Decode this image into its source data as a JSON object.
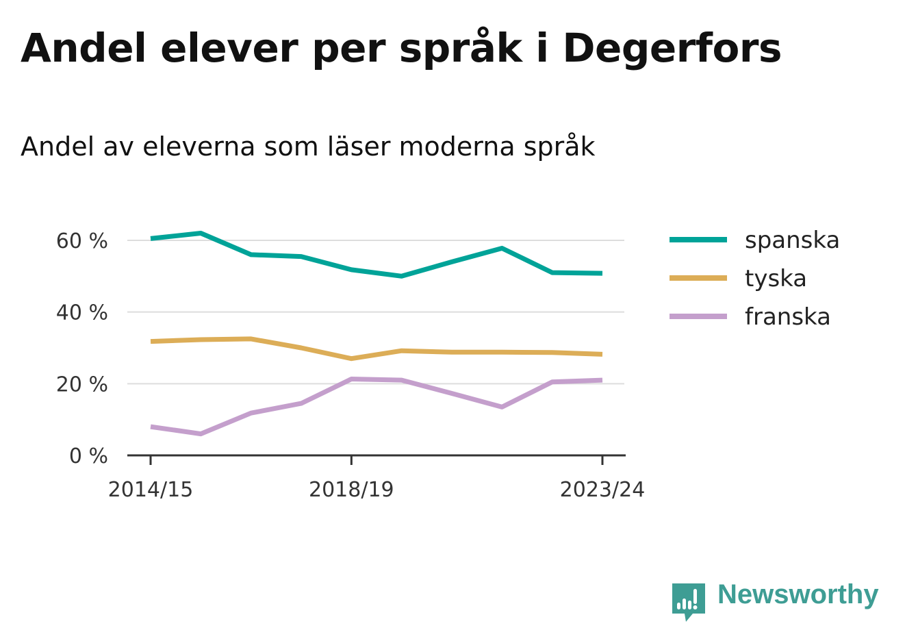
{
  "header": {
    "title": "Andel elever per språk i Degerfors",
    "subtitle": "Andel av eleverna som läser moderna språk"
  },
  "brand": {
    "name": "Newsworthy",
    "icon": "newsworthy-logo-icon",
    "color": "#3e9d94"
  },
  "chart_data": {
    "type": "line",
    "x": [
      "2014/15",
      "2015/16",
      "2016/17",
      "2017/18",
      "2018/19",
      "2019/20",
      "2020/21",
      "2021/22",
      "2022/23",
      "2023/24"
    ],
    "x_tick_labels": [
      "2014/15",
      "2018/19",
      "2023/24"
    ],
    "series": [
      {
        "name": "spanska",
        "color": "#00a398",
        "values": [
          60.5,
          62.0,
          56.0,
          55.5,
          51.8,
          50.0,
          54.0,
          57.8,
          51.0,
          50.8
        ]
      },
      {
        "name": "tyska",
        "color": "#dcad57",
        "values": [
          31.8,
          32.3,
          32.5,
          30.0,
          27.0,
          29.2,
          28.8,
          28.8,
          28.7,
          28.2
        ]
      },
      {
        "name": "franska",
        "color": "#c49fcc",
        "values": [
          8.0,
          6.0,
          11.8,
          14.5,
          21.3,
          21.0,
          17.3,
          13.5,
          20.5,
          21.0
        ]
      }
    ],
    "ylim": [
      0,
      70
    ],
    "y_ticks": [
      0,
      20,
      40,
      60
    ],
    "y_tick_labels": [
      "0 %",
      "20 %",
      "40 %",
      "60 %"
    ],
    "grid": true,
    "legend_position": "right"
  }
}
